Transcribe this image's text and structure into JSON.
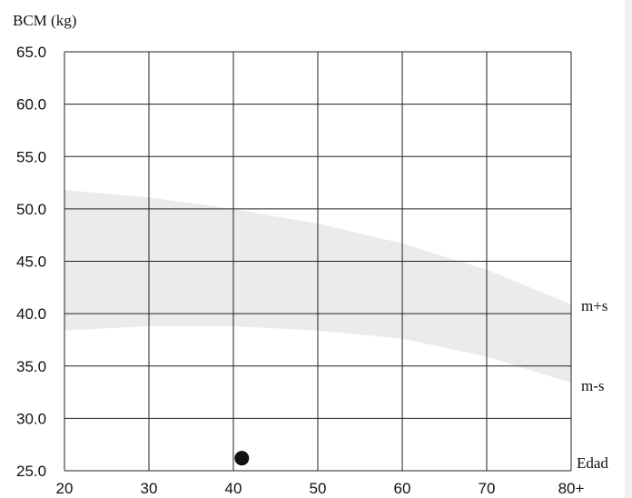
{
  "chart_data": {
    "type": "scatter",
    "ylabel": "BCM (kg)",
    "xlabel": "Edad",
    "x_ticks": [
      "20",
      "30",
      "40",
      "50",
      "60",
      "70",
      "80+"
    ],
    "y_ticks": [
      "25.0",
      "30.0",
      "35.0",
      "40.0",
      "45.0",
      "50.0",
      "55.0",
      "60.0",
      "65.0"
    ],
    "xlim": [
      20,
      80
    ],
    "ylim": [
      25,
      65
    ],
    "grid": true,
    "band": {
      "upper_label": "m+s",
      "lower_label": "m-s",
      "color": "#ebebeb",
      "upper": [
        [
          20,
          51.8
        ],
        [
          30,
          51.1
        ],
        [
          40,
          50.0
        ],
        [
          50,
          48.6
        ],
        [
          60,
          46.7
        ],
        [
          70,
          44.2
        ],
        [
          80,
          40.9
        ]
      ],
      "lower": [
        [
          20,
          38.4
        ],
        [
          30,
          38.8
        ],
        [
          40,
          38.8
        ],
        [
          50,
          38.4
        ],
        [
          60,
          37.6
        ],
        [
          70,
          35.9
        ],
        [
          80,
          33.4
        ]
      ]
    },
    "points": [
      {
        "x": 41,
        "y": 26.2
      }
    ]
  }
}
